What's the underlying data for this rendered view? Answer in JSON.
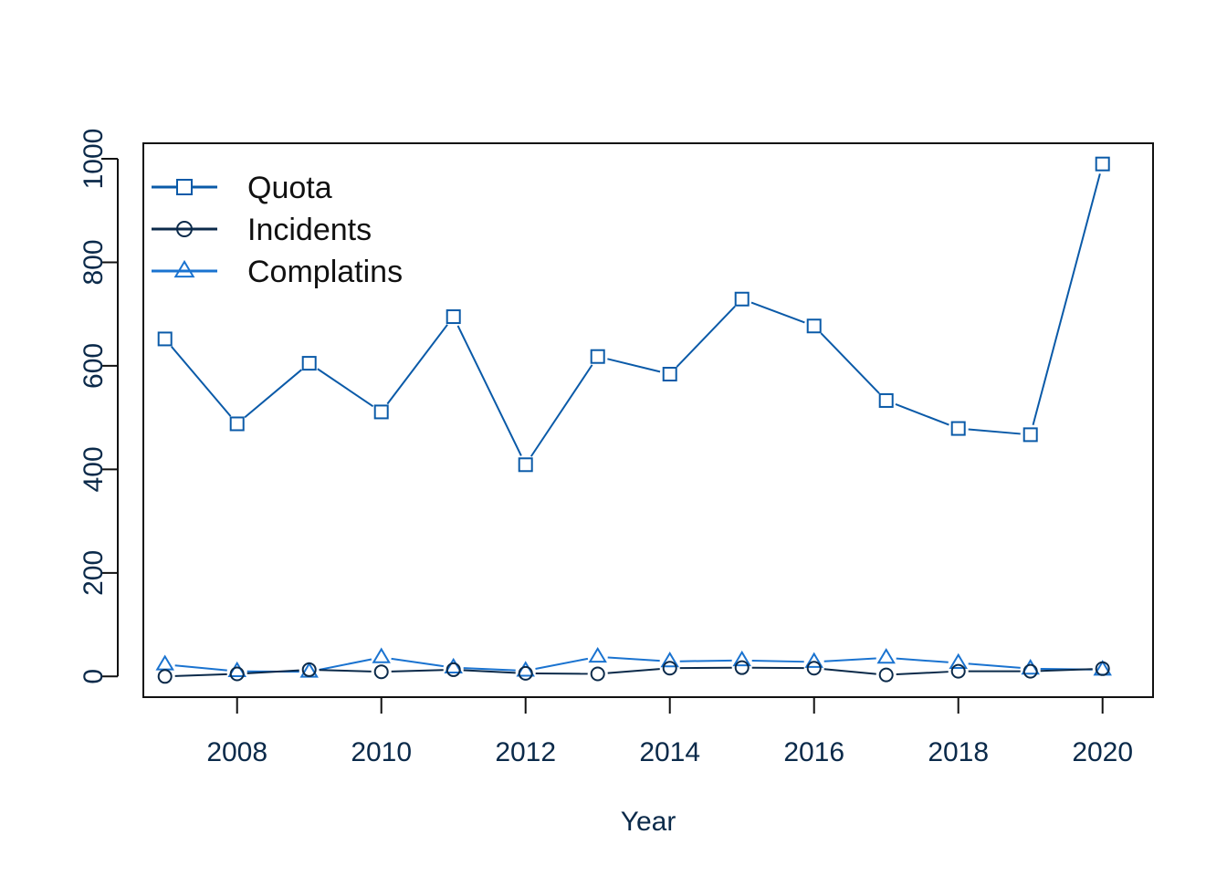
{
  "chart_data": {
    "type": "line",
    "title": "",
    "xlabel": "Year",
    "ylabel": "",
    "x": [
      2007,
      2008,
      2009,
      2010,
      2011,
      2012,
      2013,
      2014,
      2015,
      2016,
      2017,
      2018,
      2019,
      2020
    ],
    "xlim": [
      2006.7,
      2020.7
    ],
    "ylim": [
      -40,
      1030
    ],
    "x_ticks": [
      "2008",
      "2010",
      "2012",
      "2014",
      "2016",
      "2018",
      "2020"
    ],
    "y_ticks": [
      "0",
      "200",
      "400",
      "600",
      "800",
      "1000"
    ],
    "grid": false,
    "legend_position": "top-left",
    "series": [
      {
        "name": "Quota",
        "marker": "square",
        "color": "#0a5aa8",
        "values": [
          652,
          488,
          605,
          511,
          695,
          409,
          618,
          584,
          729,
          677,
          533,
          479,
          467,
          990
        ]
      },
      {
        "name": "Incidents",
        "marker": "circle",
        "color": "#0b2a4a",
        "values": [
          0,
          5,
          13,
          9,
          13,
          6,
          5,
          16,
          17,
          16,
          3,
          10,
          10,
          15
        ]
      },
      {
        "name": "Complatins",
        "marker": "triangle",
        "color": "#1a73d0",
        "values": [
          23,
          10,
          9,
          37,
          17,
          11,
          38,
          29,
          31,
          28,
          36,
          26,
          15,
          13
        ]
      }
    ]
  }
}
